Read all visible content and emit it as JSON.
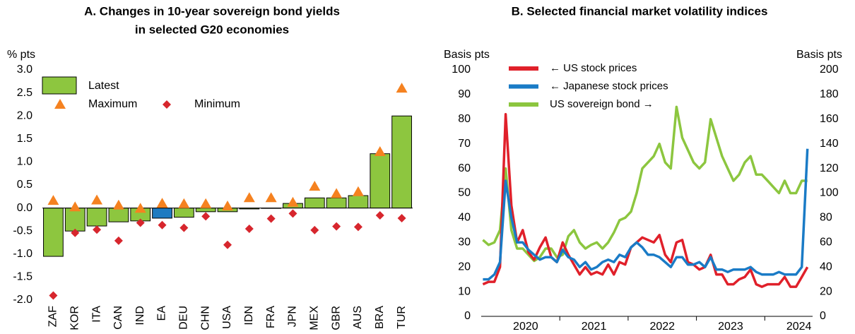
{
  "chart_data": [
    {
      "type": "bar",
      "title": [
        "A. Changes in 10-year sovereign bond yields",
        "in selected G20 economies"
      ],
      "y_label": "% pts",
      "categories": [
        "ZAF",
        "KOR",
        "ITA",
        "CAN",
        "IND",
        "EA",
        "DEU",
        "CHN",
        "USA",
        "IDN",
        "FRA",
        "JPN",
        "MEX",
        "GBR",
        "AUS",
        "BRA",
        "TUR"
      ],
      "series": [
        {
          "name": "Latest",
          "marker": "bar",
          "values": [
            -1.05,
            -0.5,
            -0.39,
            -0.3,
            -0.28,
            -0.22,
            -0.2,
            -0.08,
            -0.08,
            -0.02,
            0.0,
            0.1,
            0.22,
            0.22,
            0.27,
            1.18,
            2.0
          ],
          "colors": [
            "#8dc63f",
            "#8dc63f",
            "#8dc63f",
            "#8dc63f",
            "#8dc63f",
            "#1f7bc1",
            "#8dc63f",
            "#8dc63f",
            "#8dc63f",
            "#8dc63f",
            "#8dc63f",
            "#8dc63f",
            "#8dc63f",
            "#8dc63f",
            "#8dc63f",
            "#8dc63f",
            "#8dc63f"
          ]
        },
        {
          "name": "Maximum",
          "marker": "triangle",
          "color": "#f58220",
          "values": [
            0.16,
            0.02,
            0.17,
            0.06,
            -0.01,
            0.1,
            0.09,
            0.09,
            0.04,
            0.22,
            0.22,
            0.12,
            0.47,
            0.31,
            0.35,
            1.22,
            2.6
          ]
        },
        {
          "name": "Minimum",
          "marker": "diamond",
          "color": "#d7262d",
          "values": [
            -1.9,
            -0.54,
            -0.47,
            -0.71,
            -0.32,
            -0.37,
            -0.43,
            -0.18,
            -0.8,
            -0.45,
            -0.23,
            -0.12,
            -0.48,
            -0.4,
            -0.41,
            -0.16,
            -0.22
          ]
        }
      ],
      "ylim": [
        -2,
        3
      ],
      "yticks": [
        {
          "value": 3,
          "label": "3.0"
        },
        2.5,
        {
          "value": 2,
          "label": "2.0"
        },
        1.5,
        {
          "value": 1,
          "label": "1.0"
        },
        0.5,
        {
          "value": 0,
          "label": "0.0"
        },
        -0.5,
        {
          "value": -1,
          "label": "-1.0"
        },
        -1.5,
        {
          "value": -2,
          "label": "-2.0"
        }
      ]
    },
    {
      "type": "line",
      "title": [
        "B. Selected financial market volatility indices"
      ],
      "y_label": "Basis pts",
      "y2_label": "Basis pts",
      "x": [
        2019.875,
        2019.958,
        2020.042,
        2020.125,
        2020.208,
        2020.292,
        2020.375,
        2020.458,
        2020.542,
        2020.625,
        2020.708,
        2020.792,
        2020.875,
        2020.958,
        2021.042,
        2021.125,
        2021.208,
        2021.292,
        2021.375,
        2021.458,
        2021.542,
        2021.625,
        2021.708,
        2021.792,
        2021.875,
        2021.958,
        2022.042,
        2022.125,
        2022.208,
        2022.292,
        2022.375,
        2022.458,
        2022.542,
        2022.625,
        2022.708,
        2022.792,
        2022.875,
        2022.958,
        2023.042,
        2023.125,
        2023.208,
        2023.292,
        2023.375,
        2023.458,
        2023.542,
        2023.625,
        2023.708,
        2023.792,
        2023.875,
        2023.958,
        2024.042,
        2024.125,
        2024.208,
        2024.292,
        2024.375,
        2024.458,
        2024.542,
        2024.625
      ],
      "series": [
        {
          "name": "← US stock prices",
          "color": "#e0202a",
          "values": [
            13,
            14,
            14,
            20,
            82,
            45,
            30,
            35,
            26,
            23,
            28,
            32,
            24,
            22,
            30,
            25,
            21,
            17,
            20,
            17,
            18,
            17,
            21,
            17,
            22,
            21,
            28,
            30,
            32,
            31,
            30,
            33,
            25,
            22,
            30,
            31,
            22,
            21,
            19,
            20,
            25,
            17,
            17,
            13,
            13,
            15,
            16,
            19,
            13,
            12,
            13,
            13,
            13,
            16,
            12,
            12,
            16,
            20
          ]
        },
        {
          "name": "← Japanese stock prices",
          "color": "#1a7bc6",
          "values": [
            15,
            15,
            17,
            22,
            55,
            40,
            30,
            30,
            27,
            25,
            23,
            24,
            24,
            22,
            27,
            24,
            23,
            20,
            22,
            19,
            20,
            22,
            23,
            22,
            25,
            24,
            28,
            30,
            28,
            25,
            25,
            24,
            22,
            20,
            24,
            24,
            21,
            21,
            22,
            20,
            24,
            19,
            19,
            18,
            19,
            19,
            19,
            20,
            18,
            17,
            17,
            17,
            18,
            17,
            17,
            17,
            20,
            68
          ]
        },
        {
          "name": "US sovereign bond →",
          "color": "#8cc63f",
          "axis": "y2",
          "values": [
            62,
            58,
            60,
            70,
            120,
            70,
            55,
            55,
            50,
            45,
            48,
            55,
            55,
            48,
            50,
            65,
            70,
            60,
            55,
            58,
            60,
            55,
            60,
            68,
            78,
            80,
            85,
            100,
            120,
            125,
            130,
            140,
            125,
            120,
            170,
            145,
            135,
            125,
            120,
            125,
            160,
            145,
            130,
            120,
            110,
            115,
            125,
            130,
            115,
            115,
            110,
            105,
            100,
            110,
            100,
            100,
            110,
            110
          ]
        }
      ],
      "xlim": [
        2019.85,
        2024.7
      ],
      "xticks": [
        {
          "value": 2020.5,
          "label": "2020"
        },
        {
          "value": 2021.5,
          "label": "2021"
        },
        {
          "value": 2022.5,
          "label": "2022"
        },
        {
          "value": 2023.5,
          "label": "2023"
        },
        {
          "value": 2024.5,
          "label": "2024"
        }
      ],
      "ylim": [
        0,
        100
      ],
      "yticks": [
        0,
        10,
        20,
        30,
        40,
        50,
        60,
        70,
        80,
        90,
        100
      ],
      "y2lim": [
        0,
        200
      ],
      "y2ticks": [
        0,
        20,
        40,
        60,
        80,
        100,
        120,
        140,
        160,
        180,
        200
      ]
    }
  ]
}
